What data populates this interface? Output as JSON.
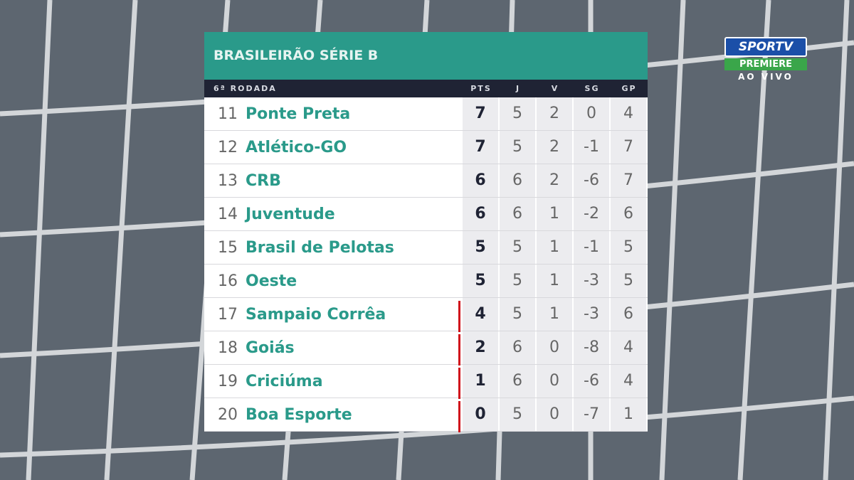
{
  "header": {
    "title": "BRASILEIRÃO SÉRIE B",
    "round": "6ª RODADA"
  },
  "logo": {
    "channel": "SPORTV",
    "package": "PREMIERE",
    "status": "AO VIVO"
  },
  "table": {
    "columns": [
      "PTS",
      "J",
      "V",
      "SG",
      "GP"
    ],
    "rows": [
      [
        11,
        "Ponte Preta",
        7,
        5,
        2,
        0,
        4
      ],
      [
        12,
        "Atlético-GO",
        7,
        5,
        2,
        -1,
        7
      ],
      [
        13,
        "CRB",
        6,
        6,
        2,
        -6,
        7
      ],
      [
        14,
        "Juventude",
        6,
        6,
        1,
        -2,
        6
      ],
      [
        15,
        "Brasil de Pelotas",
        5,
        5,
        1,
        -1,
        5
      ],
      [
        16,
        "Oeste",
        5,
        5,
        1,
        -3,
        5
      ],
      [
        17,
        "Sampaio Corrêa",
        4,
        5,
        1,
        -3,
        6
      ],
      [
        18,
        "Goiás",
        2,
        6,
        0,
        -8,
        4
      ],
      [
        19,
        "Criciúma",
        1,
        6,
        0,
        -6,
        4
      ],
      [
        20,
        "Boa Esporte",
        0,
        5,
        0,
        -7,
        1
      ]
    ]
  }
}
